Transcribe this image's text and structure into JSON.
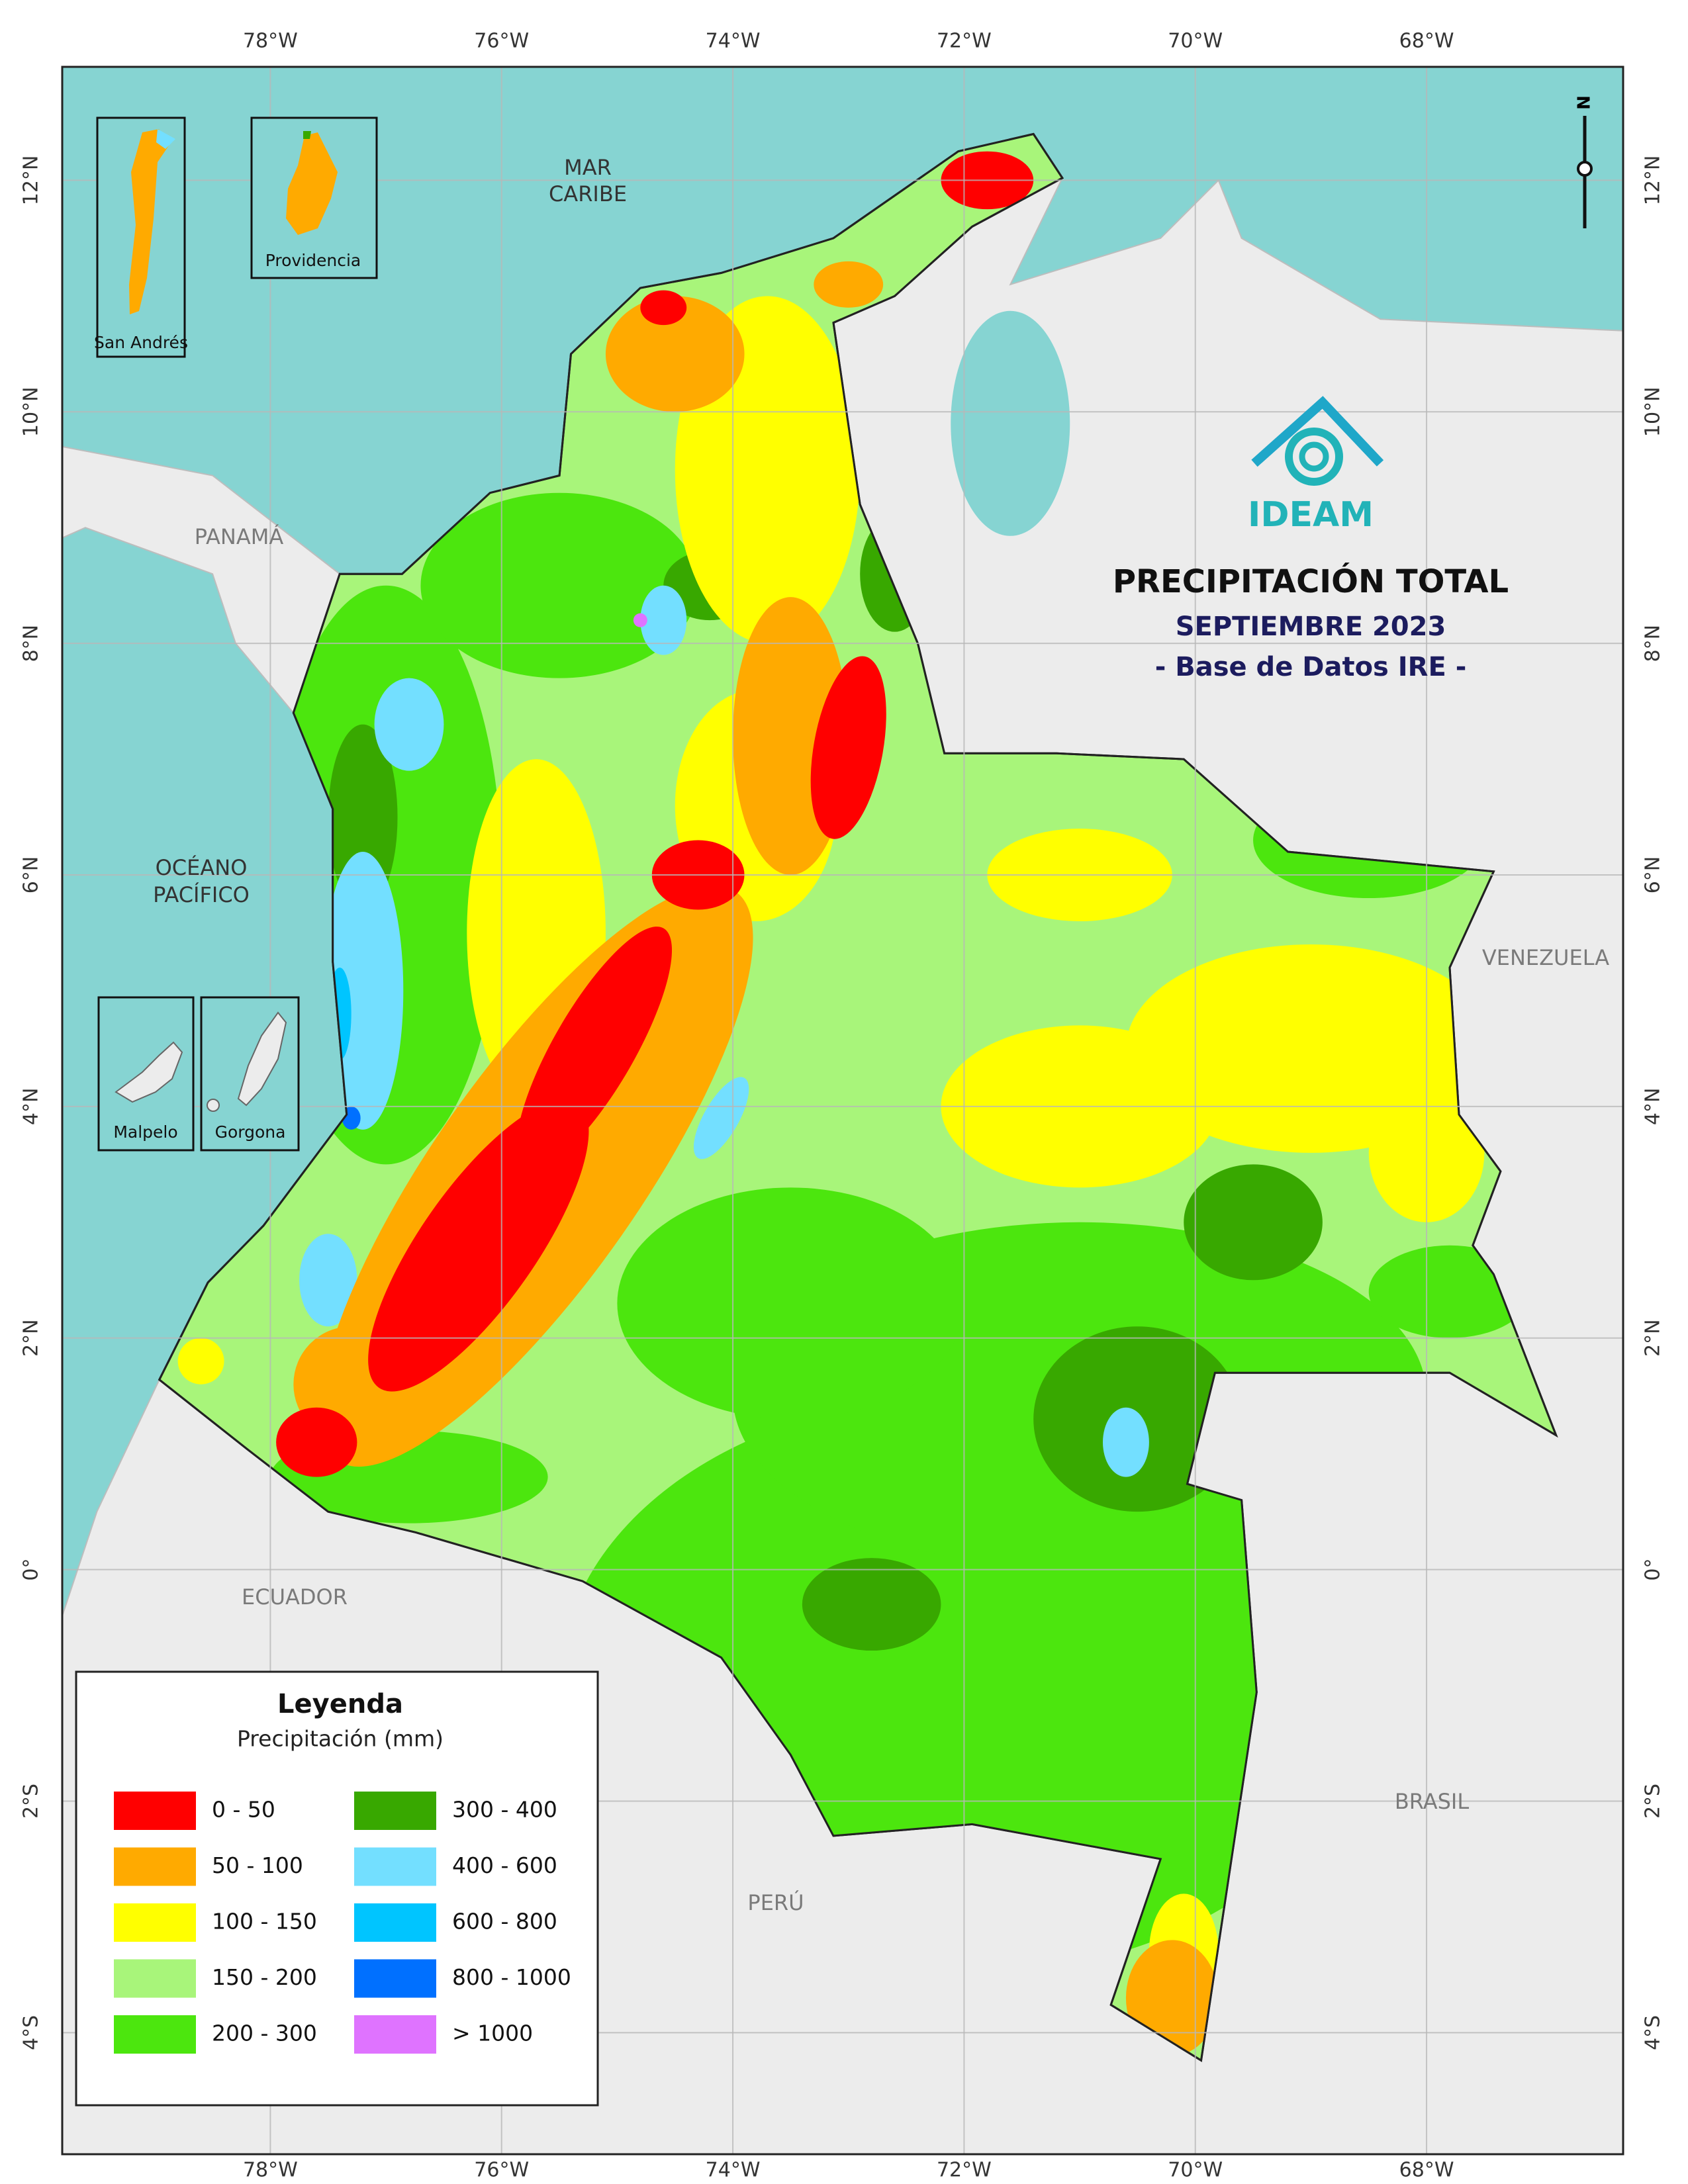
{
  "map": {
    "title": "PRECIPITACIÓN TOTAL",
    "subtitle": "SEPTIEMBRE 2023",
    "source": "- Base de Datos IRE -",
    "logo": "IDEAM",
    "north": "N",
    "xlim": [
      -79.8,
      -66.3
    ],
    "ylim": [
      -5.05,
      12.98
    ],
    "xticks": [
      {
        "value": -78,
        "label": "78°W"
      },
      {
        "value": -76,
        "label": "76°W"
      },
      {
        "value": -74,
        "label": "74°W"
      },
      {
        "value": -72,
        "label": "72°W"
      },
      {
        "value": -70,
        "label": "70°W"
      },
      {
        "value": -68,
        "label": "68°W"
      }
    ],
    "yticks": [
      {
        "value": 12,
        "label": "12°N"
      },
      {
        "value": 10,
        "label": "10°N"
      },
      {
        "value": 8,
        "label": "8°N"
      },
      {
        "value": 6,
        "label": "6°N"
      },
      {
        "value": 4,
        "label": "4°N"
      },
      {
        "value": 2,
        "label": "2°N"
      },
      {
        "value": 0,
        "label": "0°"
      },
      {
        "value": -2,
        "label": "2°S"
      },
      {
        "value": -4,
        "label": "4°S"
      }
    ],
    "grid": true,
    "places": {
      "sea": [
        "MAR",
        "CARIBE"
      ],
      "ocean": [
        "OCÉANO",
        "PACÍFICO"
      ],
      "panama": "PANAMÁ",
      "venezuela": "VENEZUELA",
      "ecuador": "ECUADOR",
      "brasil": "BRASIL",
      "peru": "PERÚ"
    },
    "insets": [
      "San Andrés",
      "Providencia",
      "Malpelo",
      "Gorgona"
    ],
    "legend": {
      "title": "Leyenda",
      "subtitle": "Precipitación (mm)",
      "items": [
        {
          "label": "0 - 50",
          "color": "#ff0000"
        },
        {
          "label": "50 - 100",
          "color": "#ffaa00"
        },
        {
          "label": "100 - 150",
          "color": "#ffff00"
        },
        {
          "label": "150 - 200",
          "color": "#a8f57a"
        },
        {
          "label": "200 - 300",
          "color": "#4ce60e"
        },
        {
          "label": "300 - 400",
          "color": "#38a800"
        },
        {
          "label": "400 - 600",
          "color": "#73dfff"
        },
        {
          "label": "600 - 800",
          "color": "#00c5ff"
        },
        {
          "label": "800 - 1000",
          "color": "#0070ff"
        },
        {
          "label": "> 1000",
          "color": "#df73ff"
        }
      ]
    }
  }
}
